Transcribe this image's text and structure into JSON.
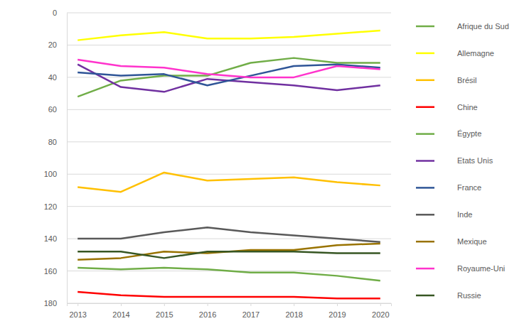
{
  "chart_data": {
    "type": "line",
    "categories": [
      "2013",
      "2014",
      "2015",
      "2016",
      "2017",
      "2018",
      "2019",
      "2020"
    ],
    "ylim": [
      180,
      0
    ],
    "yticks": [
      0,
      20,
      40,
      60,
      80,
      100,
      120,
      140,
      160,
      180
    ],
    "grid": true,
    "legend": "right",
    "series": [
      {
        "name": "Afrique du Sud",
        "color": "#70ad47",
        "values": [
          52,
          42,
          39,
          39,
          31,
          28,
          31,
          31
        ]
      },
      {
        "name": "Allemagne",
        "color": "#ffff00",
        "values": [
          17,
          14,
          12,
          16,
          16,
          15,
          13,
          11
        ]
      },
      {
        "name": "Brésil",
        "color": "#ffc000",
        "values": [
          108,
          111,
          99,
          104,
          103,
          102,
          105,
          107
        ]
      },
      {
        "name": "Chine",
        "color": "#ff0000",
        "values": [
          173,
          175,
          176,
          176,
          176,
          176,
          177,
          177
        ]
      },
      {
        "name": "Égypte",
        "color": "#70ad47",
        "values": [
          158,
          159,
          158,
          159,
          161,
          161,
          163,
          166
        ]
      },
      {
        "name": "Etats Unis",
        "color": "#7030a0",
        "values": [
          32,
          46,
          49,
          41,
          43,
          45,
          48,
          45
        ]
      },
      {
        "name": "France",
        "color": "#2f5597",
        "values": [
          37,
          39,
          38,
          45,
          39,
          33,
          32,
          34
        ]
      },
      {
        "name": "Inde",
        "color": "#595959",
        "values": [
          140,
          140,
          136,
          133,
          136,
          138,
          140,
          142
        ]
      },
      {
        "name": "Mexique",
        "color": "#997300",
        "values": [
          153,
          152,
          148,
          149,
          147,
          147,
          144,
          143
        ]
      },
      {
        "name": "Royaume-Uni",
        "color": "#ff33cc",
        "values": [
          29,
          33,
          34,
          38,
          40,
          40,
          33,
          35
        ]
      },
      {
        "name": "Russie",
        "color": "#375623",
        "values": [
          148,
          148,
          152,
          148,
          148,
          148,
          149,
          149
        ]
      }
    ]
  }
}
